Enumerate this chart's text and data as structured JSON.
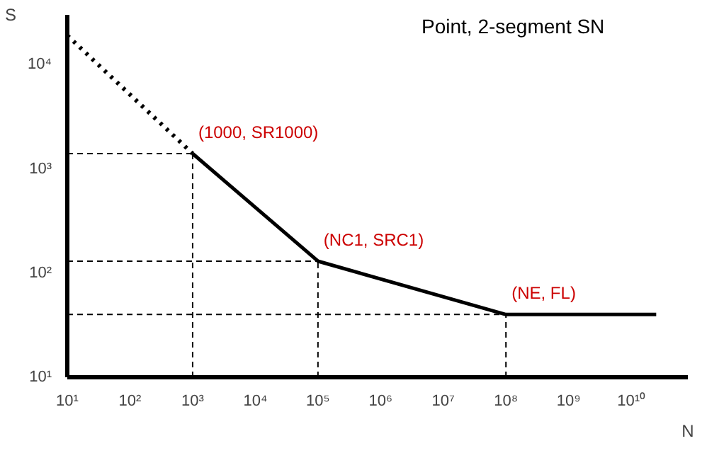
{
  "chart_data": {
    "type": "line",
    "title": "Point, 2-segment SN",
    "xlabel": "N",
    "ylabel": "S",
    "log": "xy",
    "xlim": [
      10,
      80000000000
    ],
    "ylim": [
      10,
      30000
    ],
    "xticks": [
      {
        "value": 10,
        "label": "10¹"
      },
      {
        "value": 100,
        "label": "10²"
      },
      {
        "value": 1000,
        "label": "10³"
      },
      {
        "value": 10000,
        "label": "10⁴"
      },
      {
        "value": 100000,
        "label": "10⁵"
      },
      {
        "value": 1000000,
        "label": "10⁶"
      },
      {
        "value": 10000000,
        "label": "10⁷"
      },
      {
        "value": 100000000,
        "label": "10⁸"
      },
      {
        "value": 1000000000,
        "label": "10⁹"
      },
      {
        "value": 10000000000,
        "label": "10¹⁰"
      }
    ],
    "yticks": [
      {
        "value": 10,
        "label": "10¹"
      },
      {
        "value": 100,
        "label": "10²"
      },
      {
        "value": 1000,
        "label": "10³"
      },
      {
        "value": 10000,
        "label": "10⁴"
      }
    ],
    "series": [
      {
        "color": "#000000",
        "line_style": "dotted",
        "x": [
          10,
          1000
        ],
        "values": [
          19000,
          1400
        ]
      },
      {
        "color": "#000000",
        "line_style": "solid",
        "x": [
          1000,
          100000,
          100000000,
          25000000000
        ],
        "values": [
          1400,
          130,
          40,
          40
        ]
      }
    ],
    "annotations": [
      {
        "text": "(1000, SR1000)",
        "x": 1000,
        "y": 1400
      },
      {
        "text": "(NC1, SRC1)",
        "x": 100000,
        "y": 130
      },
      {
        "text": "(NE, FL)",
        "x": 100000000,
        "y": 40
      }
    ]
  }
}
